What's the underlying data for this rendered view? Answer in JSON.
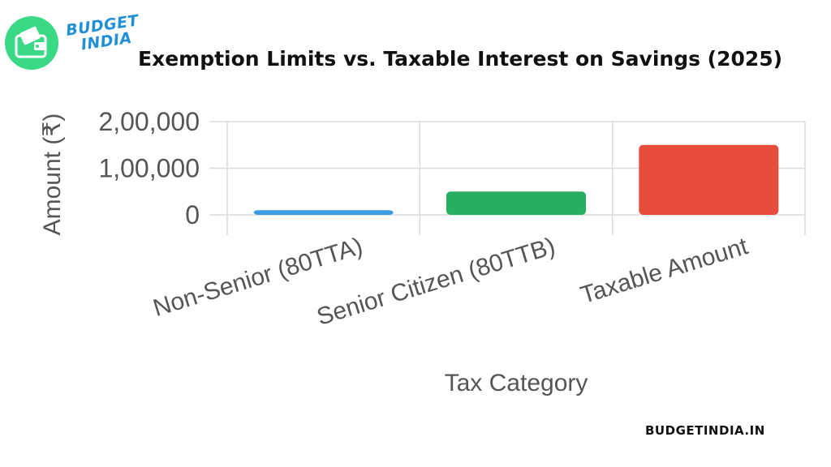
{
  "brand": {
    "logo_line1": "BUDGET",
    "logo_line2": "INDIA",
    "icon": "wallet-icon",
    "badge_color": "#39d985",
    "logo_text_color": "#1f8fd8",
    "footer": "BUDGETINDIA.IN"
  },
  "chart_data": {
    "type": "bar",
    "title": "Exemption Limits vs. Taxable Interest on Savings (2025)",
    "xlabel": "Tax Category",
    "ylabel": "Amount (₹)",
    "categories": [
      "Non-Senior (80TTA)",
      "Senior Citizen (80TTB)",
      "Taxable Amount"
    ],
    "values": [
      10000,
      50000,
      150000
    ],
    "colors": [
      "#3b9ae1",
      "#27ae60",
      "#e74c3c"
    ],
    "ylim": [
      0,
      200000
    ],
    "yticks": [
      0,
      100000,
      200000
    ],
    "ytick_labels": [
      "0",
      "1,00,000",
      "2,00,000"
    ],
    "grid": true,
    "legend": "none"
  }
}
